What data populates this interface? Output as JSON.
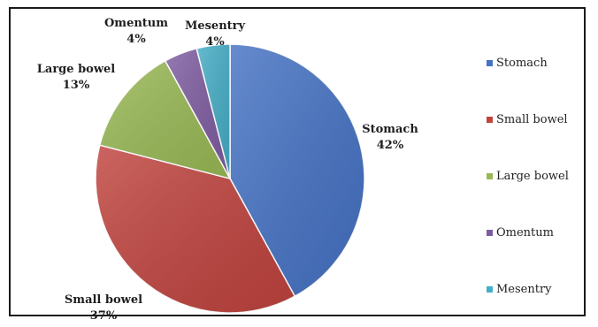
{
  "chart_data": {
    "type": "pie",
    "categories": [
      "Stomach",
      "Small bowel",
      "Large bowel",
      "Omentum",
      "Mesentry"
    ],
    "values": [
      42,
      37,
      13,
      4,
      4
    ],
    "value_labels": [
      "42%",
      "37%",
      "13%",
      "4%",
      "4%"
    ],
    "colors": [
      "#4572c4",
      "#c0433e",
      "#99b955",
      "#7e5ca0",
      "#45adc6"
    ],
    "legend_placement": "right",
    "show_labels": true
  }
}
